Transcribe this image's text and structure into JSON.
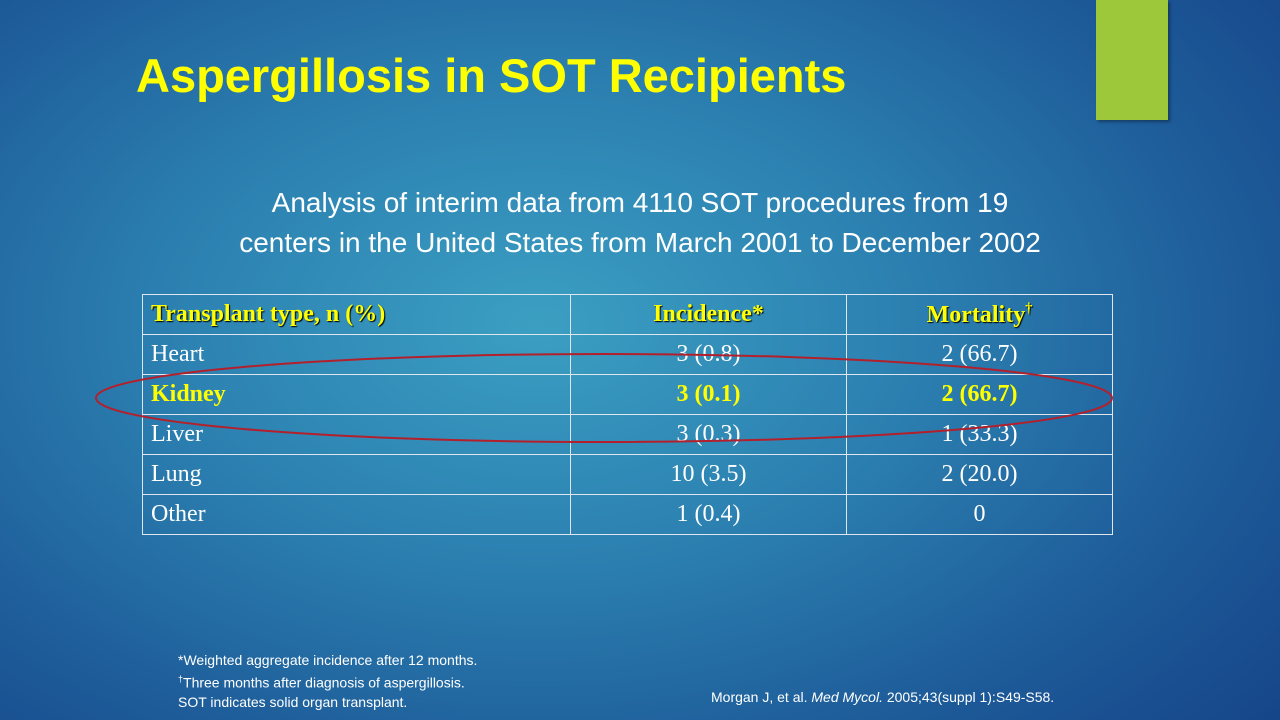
{
  "slide": {
    "title": "Aspergillosis in SOT Recipients",
    "subtitle_lines": [
      "Analysis of interim data from 4110 SOT procedures from 19",
      "centers in the United States from March 2001 to December 2002"
    ],
    "table": {
      "header": [
        "Transplant type, n (%)",
        "Incidence*",
        "Mortality"
      ],
      "header_superscript": "†",
      "rows": [
        [
          "Heart",
          "3 (0.8)",
          "2 (66.7)"
        ],
        [
          "Kidney",
          "3 (0.1)",
          "2 (66.7)"
        ],
        [
          "Liver",
          "3 (0.3)",
          "1 (33.3)"
        ],
        [
          "Lung",
          "10 (3.5)",
          "2 (20.0)"
        ],
        [
          "Other",
          "1 (0.4)",
          "0"
        ]
      ]
    },
    "footnotes": [
      {
        "text": "*Weighted aggregate incidence after 12 months."
      },
      {
        "mark": "†",
        "text": "Three months after diagnosis of aspergillosis."
      },
      {
        "text": "SOT indicates solid organ transplant."
      }
    ],
    "citation": {
      "authors": "Morgan J, et al.",
      "journal": "Med Mycol.",
      "details": "2005;43(suppl 1):S49-S58."
    }
  }
}
